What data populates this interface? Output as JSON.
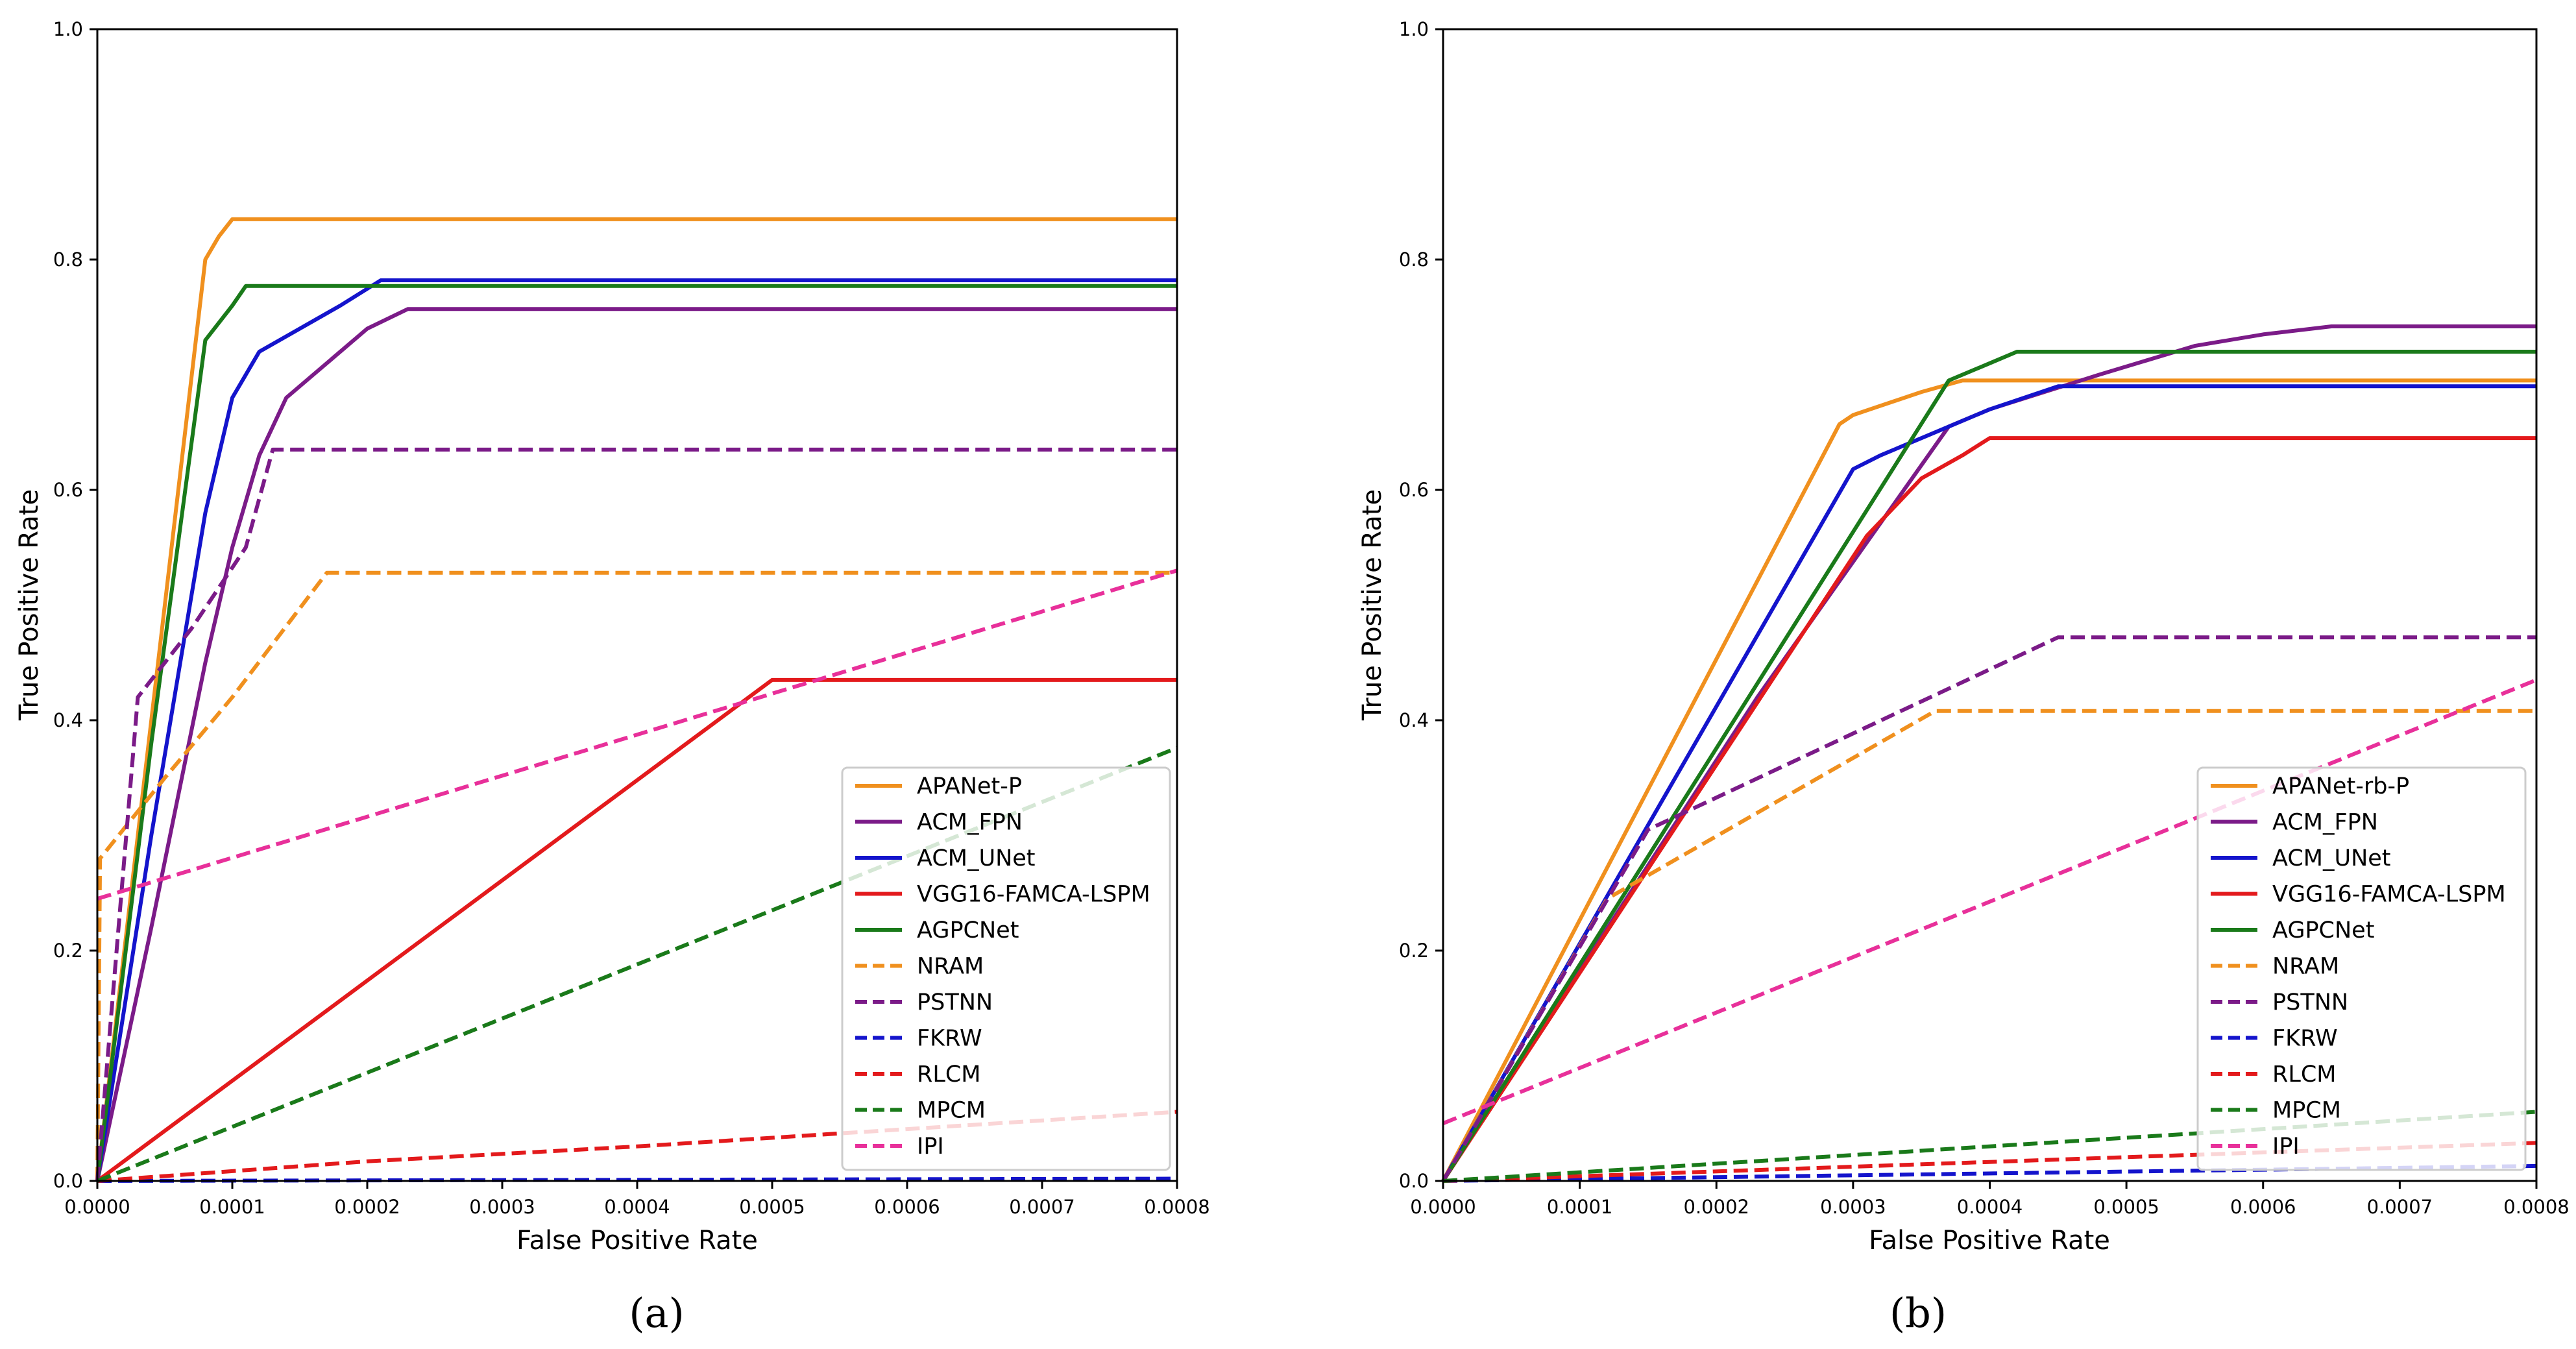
{
  "chart_data": [
    {
      "type": "line",
      "panel_label": "(a)",
      "xlabel": "False Positive Rate",
      "ylabel": "True Positive Rate",
      "xlim": [
        0,
        0.0008
      ],
      "ylim": [
        0,
        1.0
      ],
      "xticks": [
        "0.0000",
        "0.0001",
        "0.0002",
        "0.0003",
        "0.0004",
        "0.0005",
        "0.0006",
        "0.0007",
        "0.0008"
      ],
      "yticks": [
        "0.0",
        "0.2",
        "0.4",
        "0.6",
        "0.8",
        "1.0"
      ],
      "legend_position": "lower-right",
      "series": [
        {
          "name": "APANet-P",
          "color": "#f0901e",
          "dash": "solid",
          "x": [
            0,
            3e-05,
            6e-05,
            8e-05,
            9e-05,
            0.0001,
            0.0008
          ],
          "y": [
            0,
            0.3,
            0.6,
            0.8,
            0.82,
            0.835,
            0.835
          ]
        },
        {
          "name": "ACM_FPN",
          "color": "#7b1b88",
          "dash": "solid",
          "x": [
            0,
            4e-05,
            8e-05,
            0.0001,
            0.00012,
            0.00014,
            0.00016,
            0.0002,
            0.00023,
            0.0008
          ],
          "y": [
            0,
            0.22,
            0.45,
            0.55,
            0.63,
            0.68,
            0.7,
            0.74,
            0.757,
            0.757
          ]
        },
        {
          "name": "ACM_UNet",
          "color": "#1414cc",
          "dash": "solid",
          "x": [
            0,
            4e-05,
            8e-05,
            0.0001,
            0.00012,
            0.00015,
            0.00018,
            0.00021,
            0.0008
          ],
          "y": [
            0,
            0.3,
            0.58,
            0.68,
            0.72,
            0.74,
            0.76,
            0.782,
            0.782
          ]
        },
        {
          "name": "VGG16-FAMCA-LSPM",
          "color": "#e31a1c",
          "dash": "solid",
          "x": [
            0,
            0.0005,
            0.0008
          ],
          "y": [
            0,
            0.435,
            0.435
          ]
        },
        {
          "name": "AGPCNet",
          "color": "#1a7a1a",
          "dash": "solid",
          "x": [
            0,
            4e-05,
            8e-05,
            0.0001,
            0.00011,
            0.0008
          ],
          "y": [
            0,
            0.38,
            0.73,
            0.76,
            0.777,
            0.777
          ]
        },
        {
          "name": "NRAM",
          "color": "#f0901e",
          "dash": "dashed",
          "x": [
            0,
            2e-06,
            5e-05,
            0.0001,
            0.00017,
            0.0008
          ],
          "y": [
            0,
            0.28,
            0.35,
            0.42,
            0.528,
            0.528
          ]
        },
        {
          "name": "PSTNN",
          "color": "#7b1b88",
          "dash": "dashed",
          "x": [
            0,
            3e-05,
            7e-05,
            0.00011,
            0.00013,
            0.0008
          ],
          "y": [
            0,
            0.42,
            0.48,
            0.55,
            0.635,
            0.635
          ]
        },
        {
          "name": "FKRW",
          "color": "#1414cc",
          "dash": "dashed",
          "x": [
            0,
            0.0008
          ],
          "y": [
            0,
            0.002
          ]
        },
        {
          "name": "RLCM",
          "color": "#e31a1c",
          "dash": "dashed",
          "x": [
            0,
            0.0002,
            0.0004,
            0.0006,
            0.0008
          ],
          "y": [
            0,
            0.017,
            0.03,
            0.045,
            0.06
          ]
        },
        {
          "name": "MPCM",
          "color": "#1a7a1a",
          "dash": "dashed",
          "x": [
            0,
            0.0008
          ],
          "y": [
            0,
            0.376
          ]
        },
        {
          "name": "IPI",
          "color": "#e8309a",
          "dash": "dashed",
          "x": [
            0,
            0.0008
          ],
          "y": [
            0.245,
            0.53
          ]
        }
      ]
    },
    {
      "type": "line",
      "panel_label": "(b)",
      "xlabel": "False Positive Rate",
      "ylabel": "True Positive Rate",
      "xlim": [
        0,
        0.0008
      ],
      "ylim": [
        0,
        1.0
      ],
      "xticks": [
        "0.0000",
        "0.0001",
        "0.0002",
        "0.0003",
        "0.0004",
        "0.0005",
        "0.0006",
        "0.0007",
        "0.0008"
      ],
      "yticks": [
        "0.0",
        "0.2",
        "0.4",
        "0.6",
        "0.8",
        "1.0"
      ],
      "legend_position": "lower-right",
      "series": [
        {
          "name": "APANet-rb-P",
          "color": "#f0901e",
          "dash": "solid",
          "x": [
            0,
            0.00029,
            0.0003,
            0.00035,
            0.00038,
            0.0008
          ],
          "y": [
            0,
            0.657,
            0.665,
            0.685,
            0.695,
            0.695
          ]
        },
        {
          "name": "ACM_FPN",
          "color": "#7b1b88",
          "dash": "solid",
          "x": [
            0,
            0.00023,
            0.00037,
            0.0004,
            0.00048,
            0.00055,
            0.0006,
            0.00065,
            0.0008
          ],
          "y": [
            0,
            0.42,
            0.655,
            0.67,
            0.7,
            0.725,
            0.735,
            0.742,
            0.742
          ]
        },
        {
          "name": "ACM_UNet",
          "color": "#1414cc",
          "dash": "solid",
          "x": [
            0,
            0.0003,
            0.00032,
            0.00036,
            0.0004,
            0.00045,
            0.0008
          ],
          "y": [
            0,
            0.618,
            0.63,
            0.65,
            0.67,
            0.69,
            0.69
          ]
        },
        {
          "name": "VGG16-FAMCA-LSPM",
          "color": "#e31a1c",
          "dash": "solid",
          "x": [
            0,
            0.00031,
            0.00035,
            0.00038,
            0.0004,
            0.0008
          ],
          "y": [
            0,
            0.56,
            0.61,
            0.63,
            0.645,
            0.645
          ]
        },
        {
          "name": "AGPCNet",
          "color": "#1a7a1a",
          "dash": "solid",
          "x": [
            0,
            0.00037,
            0.0004,
            0.00042,
            0.0008
          ],
          "y": [
            0,
            0.695,
            0.71,
            0.72,
            0.72
          ]
        },
        {
          "name": "NRAM",
          "color": "#f0901e",
          "dash": "dashed",
          "x": [
            0,
            0.00012,
            0.00036,
            0.0008
          ],
          "y": [
            0,
            0.245,
            0.408,
            0.408
          ]
        },
        {
          "name": "PSTNN",
          "color": "#7b1b88",
          "dash": "dashed",
          "x": [
            0,
            0.00015,
            0.00045,
            0.0008
          ],
          "y": [
            0,
            0.305,
            0.472,
            0.472
          ]
        },
        {
          "name": "FKRW",
          "color": "#1414cc",
          "dash": "dashed",
          "x": [
            0,
            0.0008
          ],
          "y": [
            0,
            0.013
          ]
        },
        {
          "name": "RLCM",
          "color": "#e31a1c",
          "dash": "dashed",
          "x": [
            0,
            0.0008
          ],
          "y": [
            0,
            0.033
          ]
        },
        {
          "name": "MPCM",
          "color": "#1a7a1a",
          "dash": "dashed",
          "x": [
            0,
            0.0008
          ],
          "y": [
            0,
            0.06
          ]
        },
        {
          "name": "IPI",
          "color": "#e8309a",
          "dash": "dashed",
          "x": [
            0,
            0.0008
          ],
          "y": [
            0.05,
            0.435
          ]
        }
      ]
    }
  ]
}
